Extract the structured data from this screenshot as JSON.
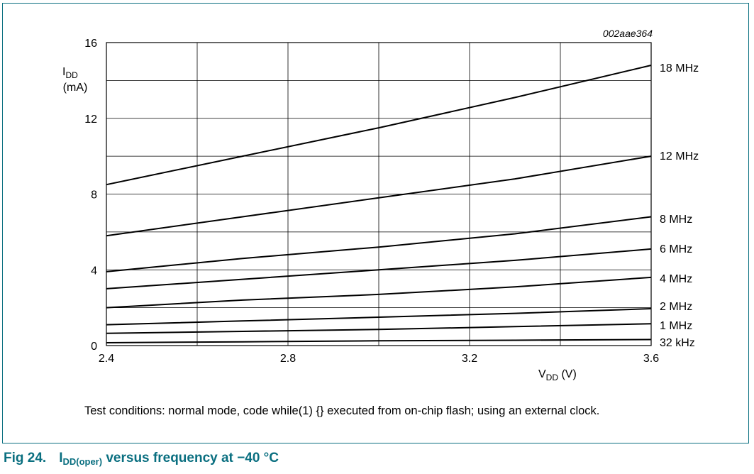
{
  "chart_data": {
    "type": "line",
    "annotation": "002aae364",
    "ylabel_main": "I",
    "ylabel_sub": "DD",
    "ylabel_unit": "(mA)",
    "xlabel_main": "V",
    "xlabel_sub": "DD",
    "xlabel_unit": " (V)",
    "xlim": [
      2.4,
      3.6
    ],
    "ylim": [
      0,
      16
    ],
    "grid": true,
    "x_ticks": [
      "2.4",
      "2.8",
      "3.2",
      "3.6"
    ],
    "y_ticks": [
      "0",
      "4",
      "8",
      "12",
      "16"
    ],
    "x": [
      2.4,
      2.7,
      3.0,
      3.3,
      3.6
    ],
    "series": [
      {
        "name": "18 MHz",
        "values": [
          8.5,
          10.0,
          11.5,
          13.1,
          14.8
        ]
      },
      {
        "name": "12 MHz",
        "values": [
          5.8,
          6.8,
          7.8,
          8.8,
          10.0
        ]
      },
      {
        "name": "8 MHz",
        "values": [
          3.9,
          4.6,
          5.2,
          5.9,
          6.8
        ]
      },
      {
        "name": "6 MHz",
        "values": [
          3.0,
          3.5,
          4.0,
          4.5,
          5.1
        ]
      },
      {
        "name": "4 MHz",
        "values": [
          2.0,
          2.4,
          2.7,
          3.1,
          3.6
        ]
      },
      {
        "name": "2 MHz",
        "values": [
          1.1,
          1.3,
          1.5,
          1.7,
          1.95
        ]
      },
      {
        "name": "1 MHz",
        "values": [
          0.65,
          0.75,
          0.85,
          1.0,
          1.15
        ]
      },
      {
        "name": "32 kHz",
        "values": [
          0.15,
          0.2,
          0.25,
          0.28,
          0.32
        ]
      }
    ]
  },
  "caption": "Test conditions: normal mode, code while(1) {} executed from on-chip flash; using an external clock.",
  "figure": {
    "number": "Fig 24.",
    "title_main": "I",
    "title_sub": "DD(oper)",
    "title_rest": " versus frequency at −40 °C"
  },
  "colors": {
    "accent": "#0a6f80",
    "line": "#000000",
    "grid": "#000000"
  }
}
